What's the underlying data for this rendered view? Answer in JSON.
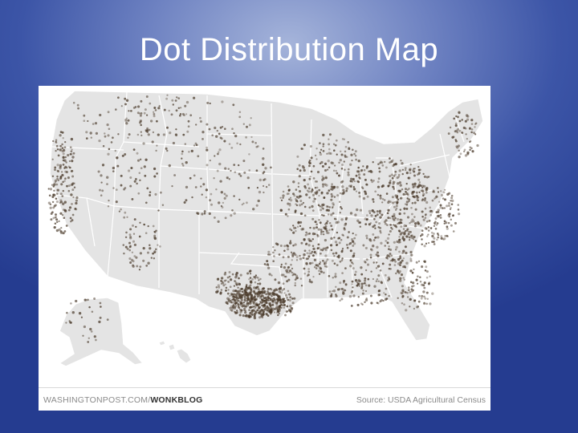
{
  "slide": {
    "title": "Dot Distribution Map"
  },
  "map": {
    "credit_outlet": "WASHINGTONPOST.COM/",
    "credit_section": "WONKBLOG",
    "source": "Source: USDA Agricultural Census",
    "colors": {
      "land": "#e4e4e4",
      "border": "#ffffff",
      "dot": "#4a3a2a"
    }
  }
}
